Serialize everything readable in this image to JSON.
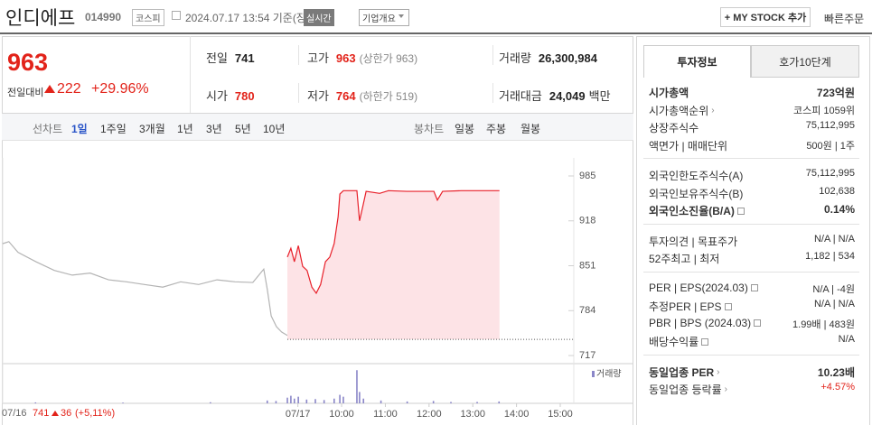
{
  "header": {
    "name": "인디에프",
    "code": "014990",
    "market": "코스피",
    "datetime": "2024.07.17 13:54 기준(장중)",
    "realtime": "실시간",
    "company_overview": "기업개요",
    "my_stock": "+ MY STOCK 추가",
    "quick_order": "빠른주문"
  },
  "price": {
    "current": "963",
    "change_label": "전일대비",
    "change": "222",
    "change_rate": "+29.96%"
  },
  "stats": [
    {
      "label": "전일",
      "value": "741"
    },
    {
      "label": "고가",
      "value": "963",
      "note": "(상한가 963)",
      "color": "#e2231a"
    },
    {
      "label": "거래량",
      "value": "26,300,984"
    },
    {
      "label": "시가",
      "value": "780",
      "color": "#e2231a"
    },
    {
      "label": "저가",
      "value": "764",
      "note": "(하한가 519)",
      "color": "#e2231a"
    },
    {
      "label": "거래대금",
      "value": "24,049",
      "unit": "백만"
    }
  ],
  "period_tabs": {
    "line_label": "선차트",
    "line_items": [
      "1일",
      "1주일",
      "3개월",
      "1년",
      "3년",
      "5년",
      "10년"
    ],
    "candle_label": "봉차트",
    "candle_items": [
      "일봉",
      "주봉",
      "월봉"
    ]
  },
  "chart_data": [
    {
      "type": "line",
      "xlim": [
        2.25,
        15.31
      ],
      "ylim": [
        717,
        985
      ],
      "yticks": [
        985,
        918,
        851,
        784,
        717
      ],
      "xticks": [
        {
          "value": 9,
          "label": "07/17"
        },
        {
          "value": 10,
          "label": "10:00"
        },
        {
          "value": 11,
          "label": "11:00"
        },
        {
          "value": 12,
          "label": "12:00"
        },
        {
          "value": 13,
          "label": "13:00"
        },
        {
          "value": 14,
          "label": "14:00"
        },
        {
          "value": 15,
          "label": "15:00"
        }
      ],
      "grid": false,
      "baseline": 741,
      "series": [
        {
          "color": "#b4b4b4",
          "x": [
            2.25,
            2.39,
            2.6,
            3.01,
            3.43,
            3.84,
            4.25,
            4.67,
            5.08,
            5.49,
            5.91,
            6.32,
            6.73,
            7.15,
            7.56,
            7.97,
            8.22,
            8.3,
            8.39,
            8.51,
            8.63,
            8.76
          ],
          "values": [
            884,
            887,
            871,
            857,
            844,
            837,
            840,
            830,
            827,
            823,
            819,
            827,
            823,
            830,
            827,
            826,
            846,
            816,
            776,
            760,
            752,
            747
          ]
        },
        {
          "color": "#e8202a",
          "fill": "#fde3e6",
          "x": [
            8.76,
            8.84,
            8.92,
            9.01,
            9.11,
            9.21,
            9.32,
            9.42,
            9.52,
            9.63,
            9.73,
            9.83,
            9.92,
            9.96,
            10.04,
            10.35,
            10.41,
            10.49,
            10.56,
            10.87,
            11.07,
            11.49,
            12.11,
            12.19,
            12.31,
            12.73,
            13.14,
            13.61
          ],
          "values": [
            864,
            877,
            857,
            881,
            850,
            844,
            819,
            810,
            823,
            857,
            864,
            884,
            924,
            958,
            963,
            963,
            918,
            941,
            962,
            959,
            963,
            962,
            962,
            949,
            962,
            963,
            963,
            963
          ]
        }
      ]
    },
    {
      "type": "bar",
      "legend": "거래량",
      "color": "#8a86c8",
      "xlim": [
        2.25,
        15.31
      ],
      "ylim": [
        0,
        4000000
      ],
      "x": [
        3,
        5,
        7,
        8.3,
        8.5,
        8.76,
        8.84,
        8.92,
        9.01,
        9.2,
        9.4,
        9.6,
        9.83,
        9.96,
        10.04,
        10.35,
        10.41,
        10.5,
        10.9,
        11.5,
        12.1,
        12.5,
        13.1,
        13.6
      ],
      "values": [
        100000,
        80000,
        120000,
        300000,
        250000,
        600000,
        800000,
        500000,
        700000,
        400000,
        450000,
        350000,
        500000,
        900000,
        700000,
        3500000,
        1200000,
        500000,
        300000,
        200000,
        250000,
        150000,
        150000,
        200000
      ]
    }
  ],
  "chart_footer": {
    "date": "07/16",
    "close": "741",
    "change": "36",
    "change_rate": "(+5,11%)"
  },
  "invest_tabs": [
    "투자정보",
    "호가10단계"
  ],
  "invest_info": [
    [
      {
        "label": "시가총액",
        "value": "723억원",
        "bold": true
      },
      {
        "label": "시가총액순위",
        "value": "코스피 1059위",
        "link": true
      },
      {
        "label": "상장주식수",
        "value": "75,112,995"
      },
      {
        "label": "액면가 | 매매단위",
        "value": "500원 | 1주"
      }
    ],
    [
      {
        "label": "외국인한도주식수(A)",
        "value": "75,112,995"
      },
      {
        "label": "외국인보유주식수(B)",
        "value": "102,638"
      },
      {
        "label": "외국인소진율(B/A)",
        "value": "0.14%",
        "bold": true,
        "help": true
      }
    ],
    [
      {
        "label": "투자의견 | 목표주가",
        "value": "N/A | N/A"
      },
      {
        "label": "52주최고 | 최저",
        "value": "1,182 | 534"
      }
    ],
    [
      {
        "label": "PER | EPS(2024.03)",
        "value": "N/A | -4원",
        "help": true
      },
      {
        "label": "추정PER | EPS",
        "value": "N/A | N/A",
        "help": true
      },
      {
        "label": "PBR | BPS (2024.03)",
        "value": "1.99배 | 483원",
        "help": true
      },
      {
        "label": "배당수익률",
        "value": "N/A",
        "help": true
      }
    ],
    [
      {
        "label": "동일업종 PER",
        "value": "10.23배",
        "bold": true,
        "link": true
      },
      {
        "label": "동일업종 등락률",
        "value": "+4.57%",
        "link": true,
        "color": "#e2231a"
      }
    ]
  ]
}
